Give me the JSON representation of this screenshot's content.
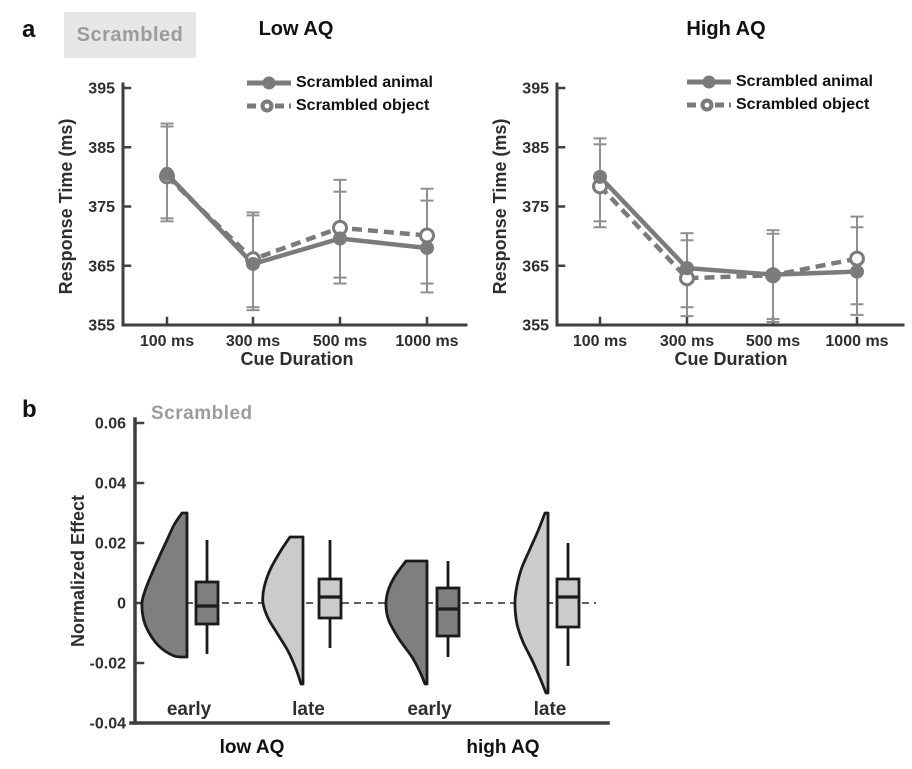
{
  "colors": {
    "line": "#7b7b7b",
    "error_bar": "#8f8f8f",
    "axis": "#3f3f3f",
    "tick_text": "#2e2e2e",
    "dark_fill": "#7f7f7f",
    "light_fill": "#cbcbcb",
    "outline": "#1b1b1b",
    "badge_bg": "#e7e7e7",
    "muted_text": "#9c9c9c",
    "dashed_zero": "#474747",
    "marker_open_fill": "#ffffff"
  },
  "panels": {
    "a_label": "a",
    "b_label": "b",
    "badge": "Scrambled"
  },
  "chart_data": [
    {
      "type": "line",
      "title": "Low AQ",
      "xlabel": "Cue Duration",
      "ylabel": "Response Time (ms)",
      "categories": [
        "100 ms",
        "300 ms",
        "500 ms",
        "1000 ms"
      ],
      "ylim": [
        355,
        395
      ],
      "yticks": [
        355,
        365,
        375,
        385,
        395
      ],
      "grid": false,
      "legend_position": "top-right",
      "series": [
        {
          "name": "Scrambled animal",
          "line_style": "solid",
          "marker": "filled-circle",
          "values": [
            380.5,
            365.3,
            369.6,
            368.0
          ],
          "err_hi": [
            388.5,
            374.0,
            377.5,
            376.0
          ],
          "err_lo": [
            372.5,
            358.0,
            363.0,
            360.5
          ]
        },
        {
          "name": "Scrambled object",
          "line_style": "dash-dot",
          "marker": "open-circle",
          "values": [
            380.1,
            366.1,
            371.4,
            370.1
          ],
          "err_hi": [
            389.0,
            373.5,
            379.5,
            378.0
          ],
          "err_lo": [
            373.0,
            357.5,
            362.0,
            362.0
          ]
        }
      ]
    },
    {
      "type": "line",
      "title": "High AQ",
      "xlabel": "Cue Duration",
      "ylabel": "Response Time (ms)",
      "categories": [
        "100 ms",
        "300 ms",
        "500 ms",
        "1000 ms"
      ],
      "ylim": [
        355,
        395
      ],
      "yticks": [
        355,
        365,
        375,
        385,
        395
      ],
      "grid": false,
      "legend_position": "top-right",
      "series": [
        {
          "name": "Scrambled animal",
          "line_style": "solid",
          "marker": "filled-circle",
          "values": [
            380.0,
            364.6,
            363.5,
            364.0
          ],
          "err_hi": [
            386.5,
            370.5,
            371.0,
            373.3
          ],
          "err_lo": [
            372.5,
            358.0,
            356.0,
            358.5
          ]
        },
        {
          "name": "Scrambled object",
          "line_style": "dash-dot",
          "marker": "open-circle",
          "values": [
            378.4,
            362.9,
            363.4,
            366.2
          ],
          "err_hi": [
            385.5,
            369.3,
            370.4,
            371.5
          ],
          "err_lo": [
            371.5,
            356.5,
            355.5,
            356.7
          ]
        }
      ]
    },
    {
      "type": "violin-box",
      "title": "Scrambled",
      "ylabel": "Normalized Effect",
      "ylim": [
        -0.04,
        0.06
      ],
      "yticks": [
        0.06,
        0.04,
        0.02,
        0,
        -0.02,
        -0.04
      ],
      "zero_line_dashed": true,
      "groups": [
        "low AQ",
        "high AQ"
      ],
      "categories": [
        "early",
        "late",
        "early",
        "late"
      ],
      "items": [
        {
          "label": "early",
          "group": "low AQ",
          "shade": "dark",
          "violin_range": [
            0.03,
            -0.018
          ],
          "violin_profile": [
            [
              0.03,
              5
            ],
            [
              0.026,
              13
            ],
            [
              0.021,
              20
            ],
            [
              0.013,
              31
            ],
            [
              0.005,
              41
            ],
            [
              0.0,
              45
            ],
            [
              -0.006,
              43
            ],
            [
              -0.011,
              36
            ],
            [
              -0.015,
              26
            ],
            [
              -0.0175,
              14
            ],
            [
              -0.018,
              6
            ]
          ],
          "box": {
            "median": -0.001,
            "q1": -0.007,
            "q3": 0.007,
            "whisker_lo": -0.017,
            "whisker_hi": 0.021
          }
        },
        {
          "label": "late",
          "group": "low AQ",
          "shade": "light",
          "violin_range": [
            0.022,
            -0.027
          ],
          "violin_profile": [
            [
              0.022,
              13
            ],
            [
              0.017,
              23
            ],
            [
              0.011,
              33
            ],
            [
              0.005,
              39
            ],
            [
              0.0,
              40
            ],
            [
              -0.005,
              35
            ],
            [
              -0.01,
              26
            ],
            [
              -0.016,
              15
            ],
            [
              -0.022,
              7
            ],
            [
              -0.027,
              2
            ]
          ],
          "box": {
            "median": 0.002,
            "q1": -0.005,
            "q3": 0.008,
            "whisker_lo": -0.015,
            "whisker_hi": 0.021
          }
        },
        {
          "label": "early",
          "group": "high AQ",
          "shade": "dark",
          "violin_range": [
            0.014,
            -0.027
          ],
          "violin_profile": [
            [
              0.014,
              21
            ],
            [
              0.009,
              32
            ],
            [
              0.004,
              39
            ],
            [
              -0.001,
              41
            ],
            [
              -0.006,
              38
            ],
            [
              -0.012,
              28
            ],
            [
              -0.018,
              15
            ],
            [
              -0.023,
              7
            ],
            [
              -0.027,
              2
            ]
          ],
          "box": {
            "median": -0.002,
            "q1": -0.011,
            "q3": 0.005,
            "whisker_lo": -0.018,
            "whisker_hi": 0.014
          }
        },
        {
          "label": "late",
          "group": "high AQ",
          "shade": "light",
          "violin_range": [
            0.03,
            -0.03
          ],
          "violin_profile": [
            [
              0.03,
              3
            ],
            [
              0.024,
              10
            ],
            [
              0.018,
              18
            ],
            [
              0.011,
              27
            ],
            [
              0.004,
              32
            ],
            [
              -0.001,
              33
            ],
            [
              -0.007,
              31
            ],
            [
              -0.013,
              25
            ],
            [
              -0.019,
              16
            ],
            [
              -0.025,
              8
            ],
            [
              -0.03,
              2
            ]
          ],
          "box": {
            "median": 0.002,
            "q1": -0.008,
            "q3": 0.008,
            "whisker_lo": -0.021,
            "whisker_hi": 0.02
          }
        }
      ]
    }
  ]
}
